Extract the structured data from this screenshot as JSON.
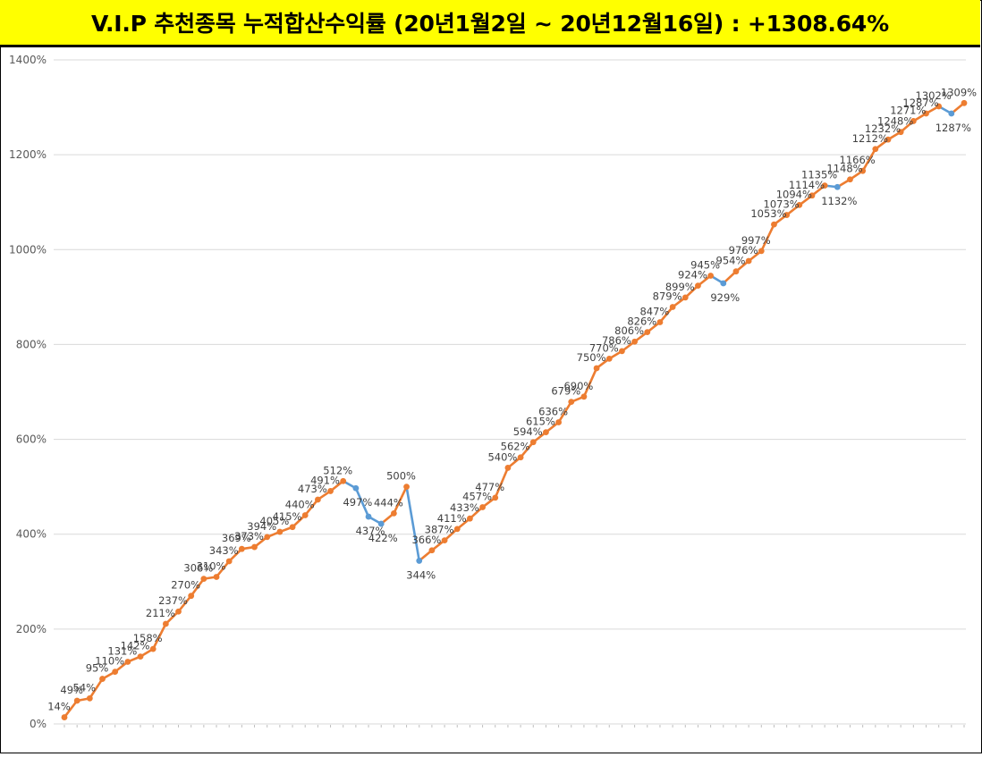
{
  "header": {
    "title": "V.I.P 추천종목 누적합산수익률 (20년1월2일 ~ 20년12월16일) : +1308.64%"
  },
  "colors": {
    "up": "#ED7D31",
    "down": "#5B9BD5",
    "grid": "#D9D9D9",
    "title_bg": "#FFFF00"
  },
  "chart_data": {
    "type": "line",
    "title": "V.I.P 추천종목 누적합산수익률 (20년1월2일 ~ 20년12월16일) : +1308.64%",
    "xlabel": "",
    "ylabel": "",
    "ylim": [
      0,
      1400
    ],
    "yticks": [
      0,
      200,
      400,
      600,
      800,
      1000,
      1200,
      1400
    ],
    "ytick_labels": [
      "0%",
      "200%",
      "400%",
      "600%",
      "800%",
      "1000%",
      "1200%",
      "1400%"
    ],
    "grid": true,
    "legend": "none",
    "value_suffix": "%",
    "values": [
      14,
      49,
      54,
      95,
      110,
      131,
      142,
      158,
      211,
      237,
      270,
      306,
      310,
      343,
      369,
      373,
      394,
      405,
      415,
      440,
      473,
      491,
      512,
      497,
      437,
      422,
      444,
      500,
      344,
      366,
      387,
      411,
      433,
      457,
      477,
      540,
      562,
      594,
      615,
      636,
      679,
      690,
      750,
      770,
      786,
      806,
      826,
      847,
      879,
      899,
      924,
      945,
      929,
      954,
      976,
      997,
      1053,
      1073,
      1094,
      1114,
      1135,
      1132,
      1148,
      1166,
      1212,
      1232,
      1248,
      1271,
      1287,
      1302,
      1287,
      1309
    ],
    "label_below": [
      false,
      false,
      false,
      false,
      false,
      false,
      false,
      false,
      false,
      false,
      false,
      false,
      false,
      false,
      false,
      false,
      false,
      false,
      false,
      false,
      false,
      false,
      false,
      true,
      true,
      true,
      false,
      false,
      true,
      false,
      false,
      false,
      false,
      false,
      false,
      false,
      false,
      false,
      false,
      false,
      false,
      false,
      false,
      false,
      false,
      false,
      false,
      false,
      false,
      false,
      false,
      false,
      true,
      false,
      false,
      false,
      false,
      false,
      false,
      false,
      false,
      true,
      false,
      false,
      false,
      false,
      false,
      false,
      false,
      false,
      true,
      false
    ]
  }
}
